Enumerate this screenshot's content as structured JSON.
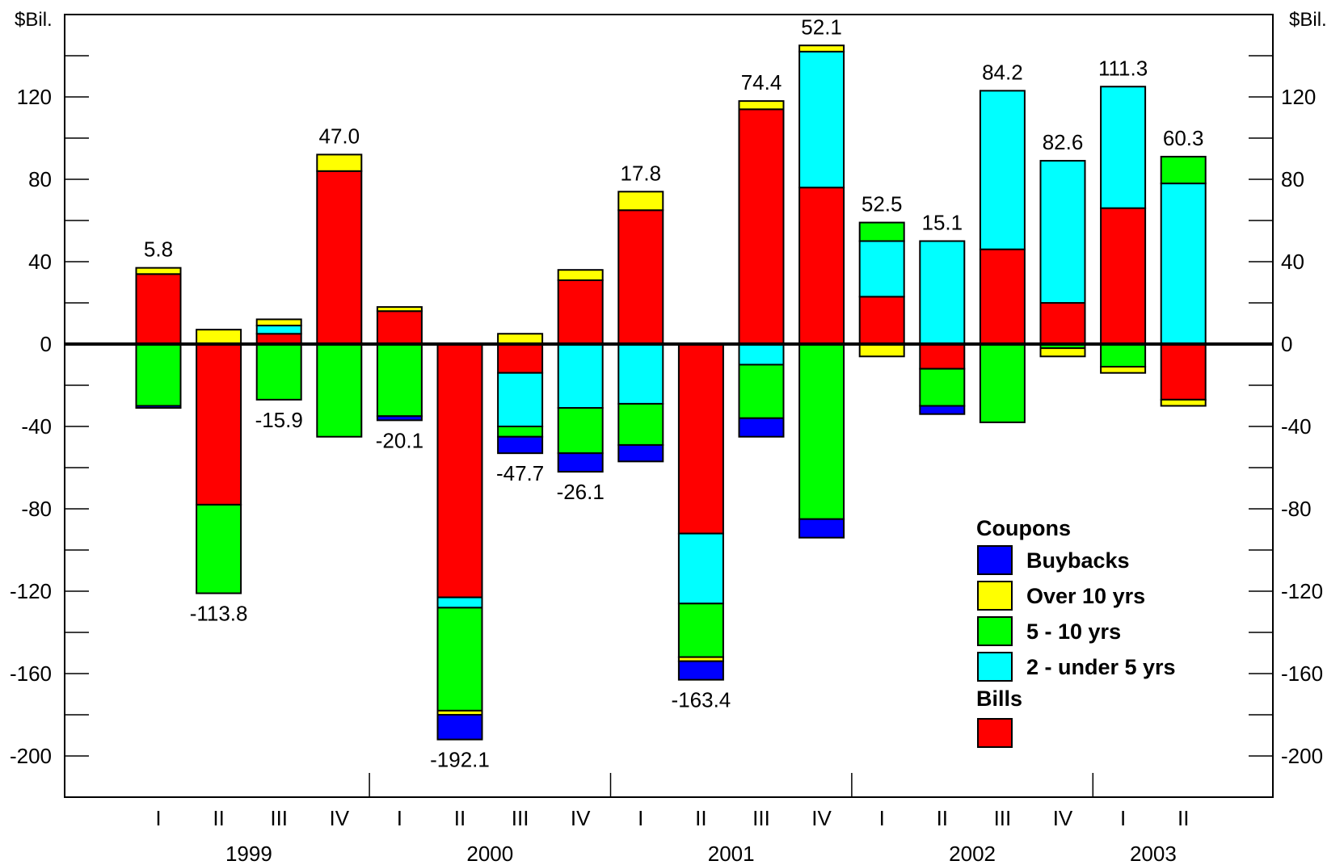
{
  "chart_data": {
    "type": "bar",
    "stacked": true,
    "y_unit_label": "$Bil.",
    "ylim": [
      -220,
      160
    ],
    "y_ticks": [
      -200,
      -160,
      -120,
      -80,
      -40,
      0,
      40,
      80,
      120
    ],
    "quarters": [
      "I",
      "II",
      "III",
      "IV",
      "I",
      "II",
      "III",
      "IV",
      "I",
      "II",
      "III",
      "IV",
      "I",
      "II",
      "III",
      "IV",
      "I",
      "II"
    ],
    "years": [
      "1999",
      "2000",
      "2001",
      "2002",
      "2003"
    ],
    "year_quarter_counts": [
      4,
      4,
      4,
      4,
      2
    ],
    "totals": [
      "5.8",
      "-113.8",
      "-15.9",
      "47.0",
      "-20.1",
      "-192.1",
      "-47.7",
      "-26.1",
      "17.8",
      "-163.4",
      "74.4",
      "52.1",
      "52.5",
      "15.1",
      "84.2",
      "82.6",
      "111.3",
      "60.3"
    ],
    "total_values": [
      5.8,
      -113.8,
      -15.9,
      47.0,
      -20.1,
      -192.1,
      -47.7,
      -26.1,
      17.8,
      -163.4,
      74.4,
      52.1,
      52.5,
      15.1,
      84.2,
      82.6,
      111.3,
      60.3
    ],
    "total_label_side": [
      "top",
      "bottom",
      "bottom",
      "top",
      "bottom",
      "bottom",
      "bottom",
      "bottom",
      "top",
      "bottom",
      "top",
      "top",
      "top",
      "top",
      "top",
      "top",
      "top",
      "top"
    ],
    "series": [
      {
        "key": "bills",
        "color": "#ff0000",
        "values": [
          34,
          -78,
          5,
          84,
          16,
          -123,
          -14,
          31,
          65,
          -92,
          114,
          76,
          23,
          -12,
          46,
          20,
          66,
          -27
        ]
      },
      {
        "key": "2-5",
        "color": "#00ffff",
        "values": [
          0,
          0,
          4,
          0,
          0,
          -5,
          -26,
          -31,
          -29,
          -34,
          -10,
          66,
          27,
          50,
          77,
          69,
          59,
          78
        ]
      },
      {
        "key": "5-10",
        "color": "#00ff00",
        "values": [
          -30,
          -43,
          -27,
          -45,
          -35,
          -50,
          -5,
          -22,
          -20,
          -26,
          -26,
          -85,
          9,
          -18,
          -38,
          -2,
          -11,
          13
        ]
      },
      {
        "key": "over10",
        "color": "#ffff00",
        "values": [
          3,
          7,
          3,
          8,
          2,
          -2,
          5,
          5,
          9,
          -2,
          4,
          3,
          -6,
          0,
          0,
          -4,
          -3,
          -3
        ]
      },
      {
        "key": "buybacks",
        "color": "#0000ff",
        "values": [
          -1,
          0,
          0,
          0,
          -2,
          -12,
          -8,
          -9,
          -8,
          -9,
          -9,
          -9,
          0,
          -4,
          0,
          0,
          0,
          0
        ]
      }
    ],
    "legend": {
      "coupons_heading": "Coupons",
      "bills_heading": "Bills",
      "items": [
        {
          "label": "Buybacks",
          "color": "#0000ff"
        },
        {
          "label": "Over 10 yrs",
          "color": "#ffff00"
        },
        {
          "label": "5 - 10 yrs",
          "color": "#00ff00"
        },
        {
          "label": "2 - under 5 yrs",
          "color": "#00ffff"
        }
      ],
      "bills_color": "#ff0000",
      "placement": "bottom-right"
    },
    "grid": false,
    "axis_line_color": "#000000"
  }
}
